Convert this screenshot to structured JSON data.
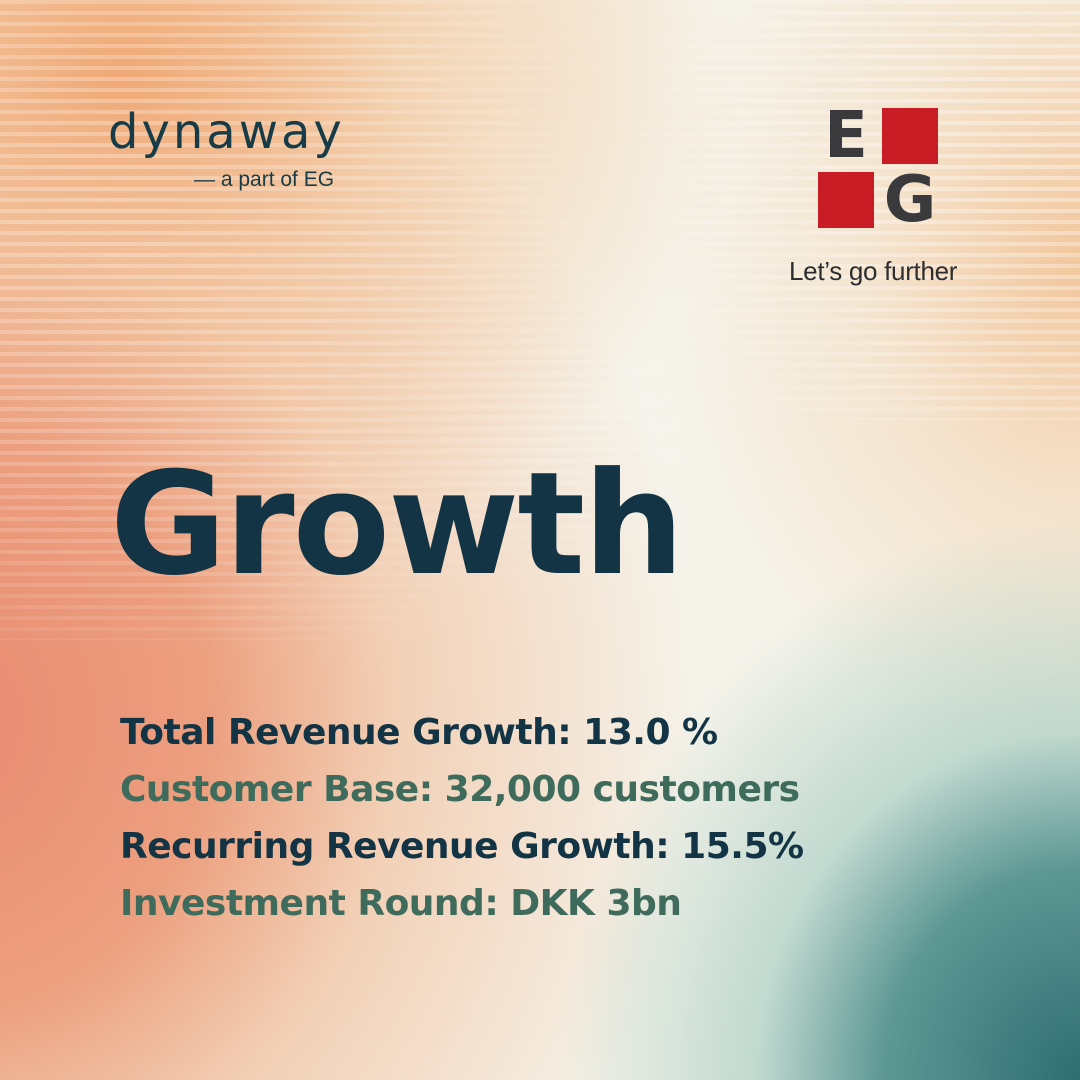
{
  "brand": {
    "name": "dynaway",
    "tagline": "— a part of EG"
  },
  "partner_logo": {
    "letters": [
      "E",
      "G"
    ],
    "tagline": "Let’s go further",
    "red": "#c81d25",
    "gray": "#3a3a3c"
  },
  "headline": "Growth",
  "stats": [
    {
      "text": "Total Revenue Growth: 13.0 %",
      "color": "#123444"
    },
    {
      "text": "Customer Base: 32,000 customers",
      "color": "#3e6b5c"
    },
    {
      "text": "Recurring Revenue Growth: 15.5%",
      "color": "#123444"
    },
    {
      "text": "Investment Round: DKK 3bn",
      "color": "#3e6b5c"
    }
  ],
  "colors": {
    "navy": "#123444",
    "green": "#3e6b5c",
    "orange": "#f0a56e",
    "coral": "#e98a72",
    "teal": "#2f6d72",
    "cream": "#f5f3ea"
  }
}
